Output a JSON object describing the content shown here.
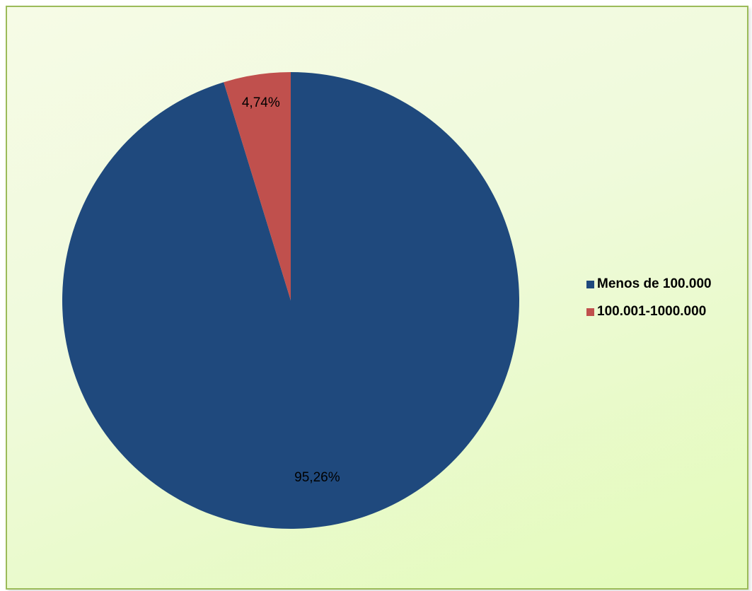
{
  "chart_data": {
    "type": "pie",
    "categories": [
      "Menos de 100.000",
      "100.001-1000.000"
    ],
    "values": [
      95.26,
      4.74
    ],
    "data_labels": [
      "95,26%",
      "4,74%"
    ],
    "colors": [
      "#1f497d",
      "#c0504d"
    ],
    "title": "",
    "legend_position": "right",
    "start_angle": "12 o'clock",
    "direction": "clockwise, smaller slice first"
  }
}
